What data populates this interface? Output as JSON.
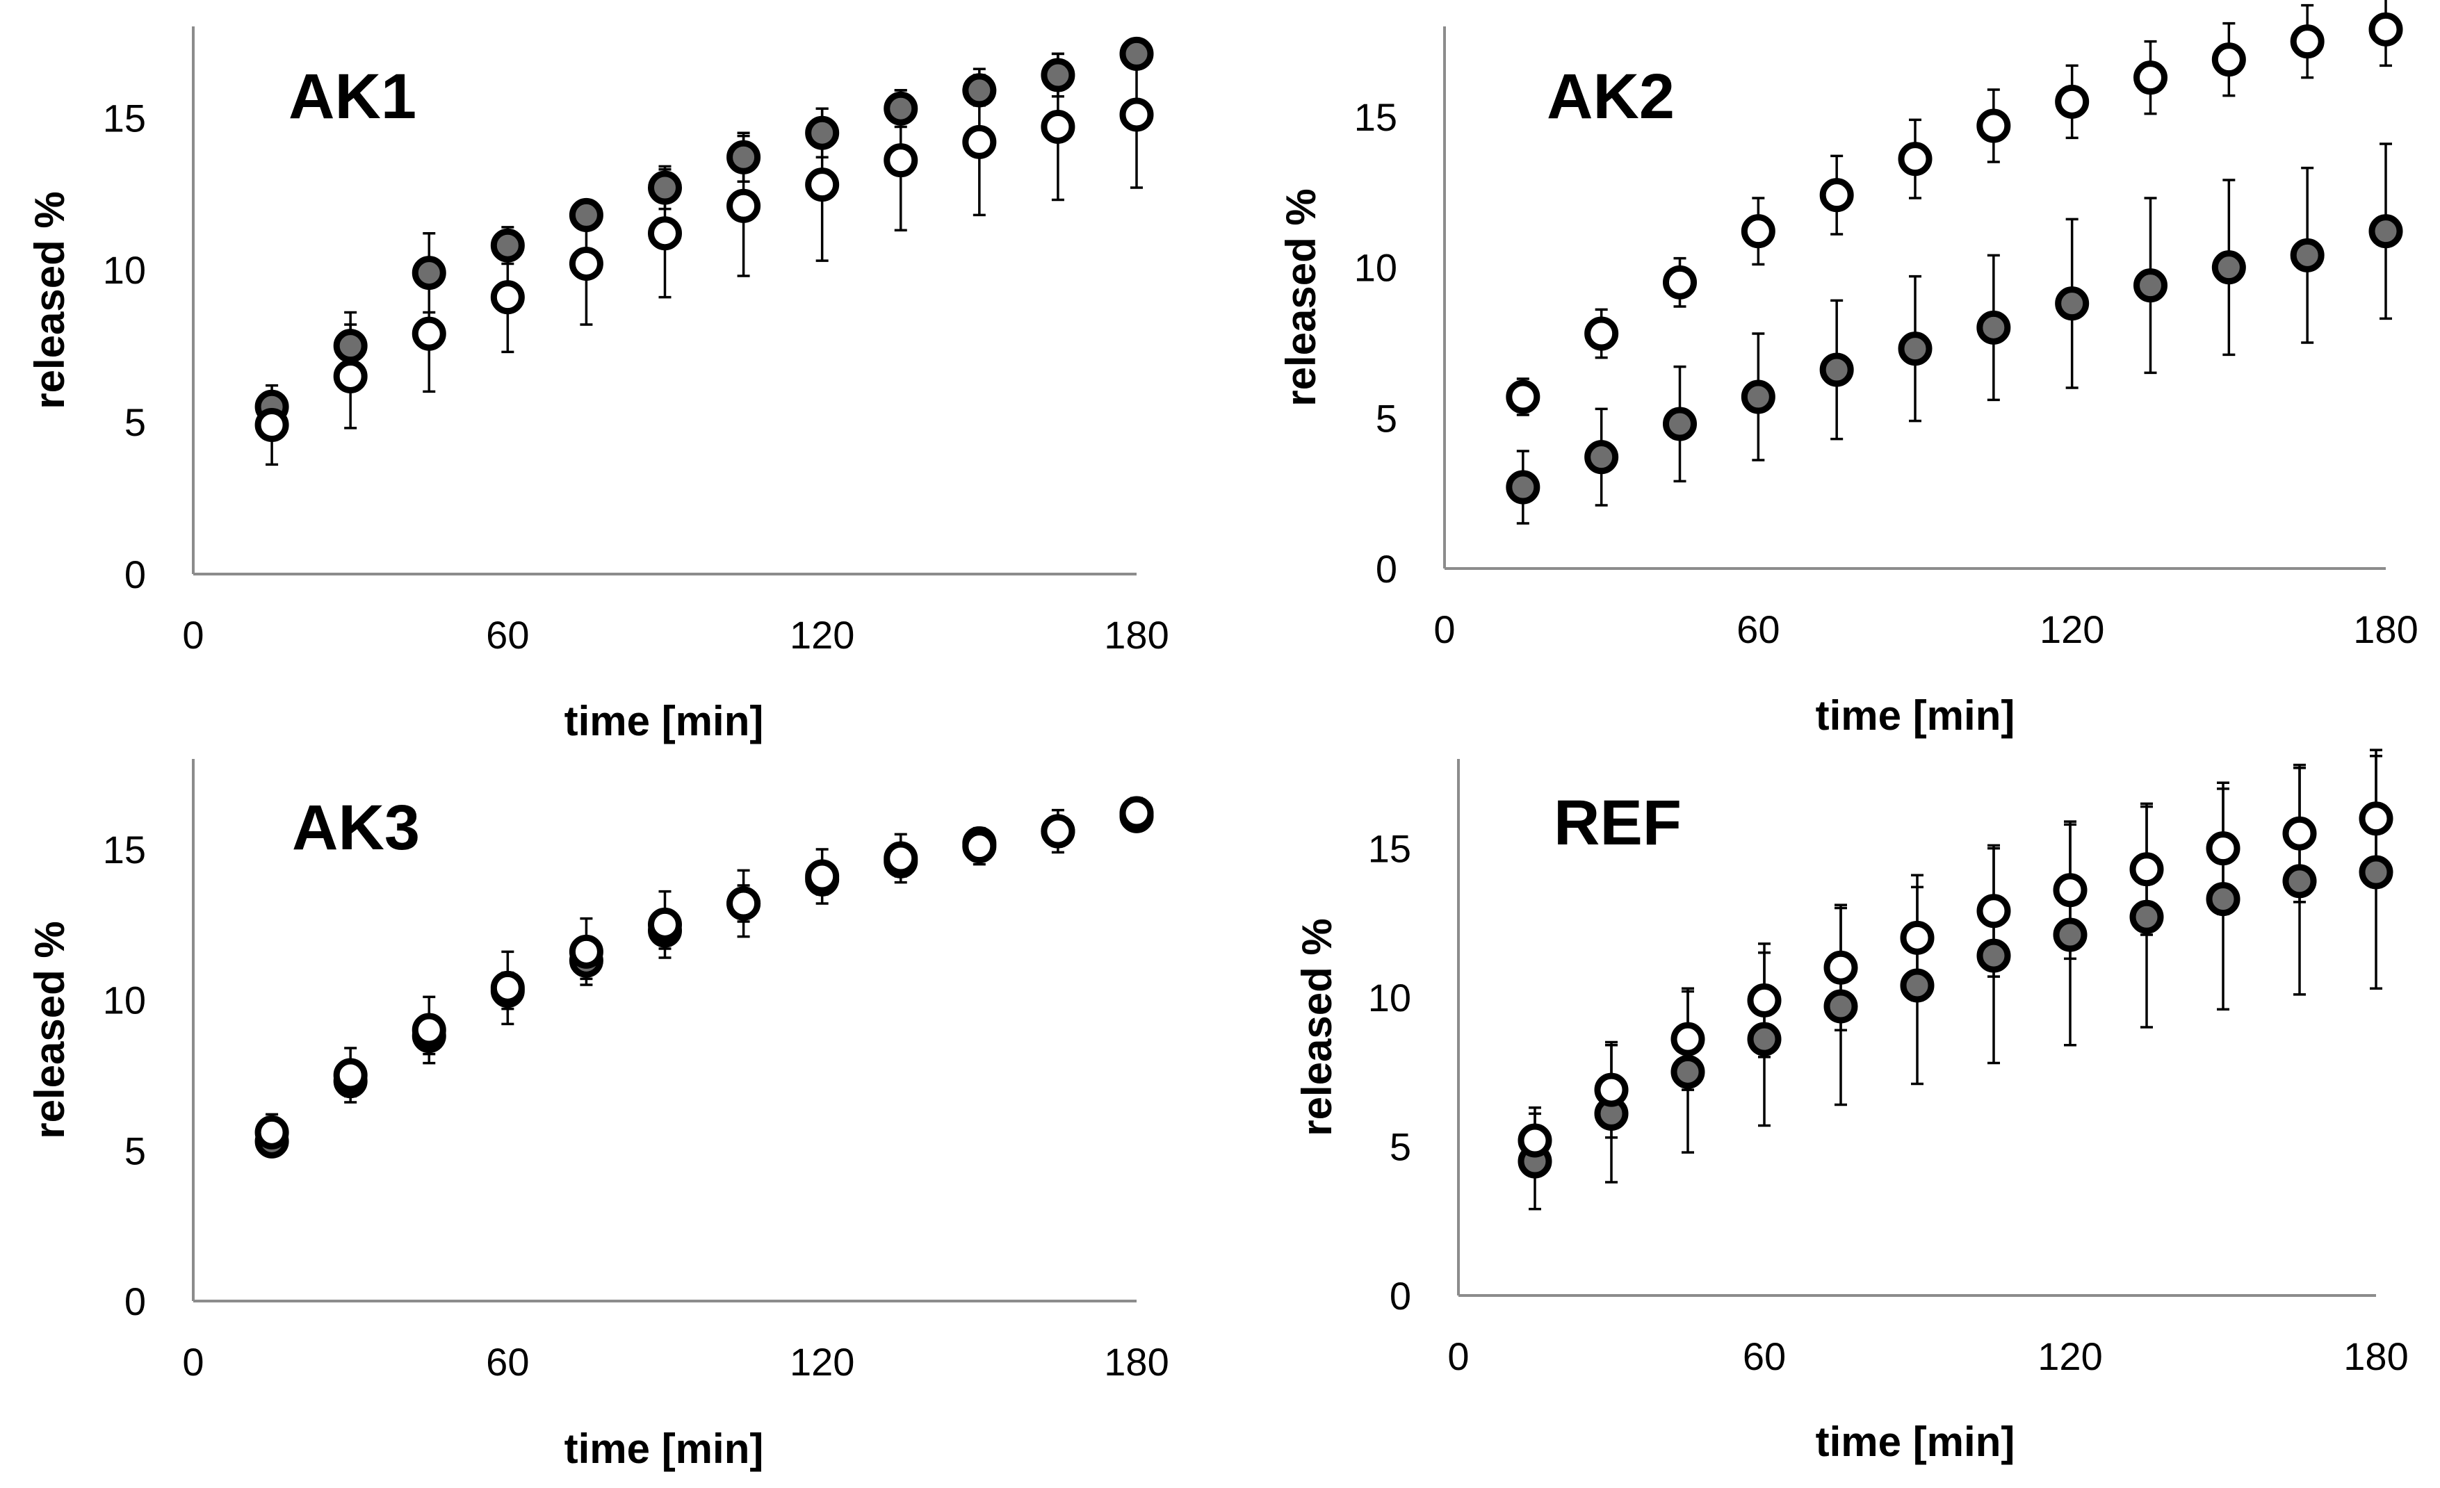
{
  "colors": {
    "filled_marker": "#6e6e6e",
    "open_marker": "#ffffff",
    "axis": "#8c8c8c",
    "text": "#000000"
  },
  "chart_data": [
    {
      "type": "scatter",
      "title": "AK1",
      "xlabel": "time [min]",
      "ylabel": "released %",
      "xlim": [
        0,
        180
      ],
      "ylim": [
        0,
        18
      ],
      "xticks": [
        0,
        60,
        120,
        180
      ],
      "yticks": [
        0,
        5,
        10,
        15
      ],
      "x": [
        15,
        30,
        45,
        60,
        75,
        90,
        105,
        120,
        135,
        150,
        165,
        180
      ],
      "series": [
        {
          "name": "filled",
          "style": "filled",
          "values": [
            5.5,
            7.5,
            9.9,
            10.8,
            11.8,
            12.7,
            13.7,
            14.5,
            15.3,
            15.9,
            16.4,
            17.1
          ],
          "errors": [
            0.3,
            1.1,
            1.3,
            0.6,
            0.4,
            0.7,
            0.8,
            0.8,
            0.6,
            0.5,
            0.7,
            0.3
          ]
        },
        {
          "name": "open",
          "style": "open",
          "values": [
            4.9,
            6.5,
            7.9,
            9.1,
            10.2,
            11.2,
            12.1,
            12.8,
            13.6,
            14.2,
            14.7,
            15.1
          ],
          "errors": [
            1.3,
            1.7,
            1.9,
            1.8,
            2.0,
            2.1,
            2.3,
            2.5,
            2.3,
            2.4,
            2.4,
            2.4
          ]
        }
      ]
    },
    {
      "type": "scatter",
      "title": "AK2",
      "xlabel": "time [min]",
      "ylabel": "released %",
      "xlim": [
        0,
        180
      ],
      "ylim": [
        0,
        18
      ],
      "xticks": [
        0,
        60,
        120,
        180
      ],
      "yticks": [
        0,
        5,
        10,
        15
      ],
      "x": [
        15,
        30,
        45,
        60,
        75,
        90,
        105,
        120,
        135,
        150,
        165,
        180
      ],
      "series": [
        {
          "name": "filled",
          "style": "filled",
          "values": [
            2.7,
            3.7,
            4.8,
            5.7,
            6.6,
            7.3,
            8.0,
            8.8,
            9.4,
            10.0,
            10.4,
            11.2
          ],
          "errors": [
            1.2,
            1.6,
            1.9,
            2.1,
            2.3,
            2.4,
            2.4,
            2.8,
            2.9,
            2.9,
            2.9,
            2.9
          ]
        },
        {
          "name": "open",
          "style": "open",
          "values": [
            5.7,
            7.8,
            9.5,
            11.2,
            12.4,
            13.6,
            14.7,
            15.5,
            16.3,
            16.9,
            17.5,
            17.9
          ],
          "errors": [
            0.6,
            0.8,
            0.8,
            1.1,
            1.3,
            1.3,
            1.2,
            1.2,
            1.2,
            1.2,
            1.2,
            1.2
          ]
        }
      ]
    },
    {
      "type": "scatter",
      "title": "AK3",
      "xlabel": "time [min]",
      "ylabel": "released %",
      "xlim": [
        0,
        180
      ],
      "ylim": [
        0,
        18
      ],
      "xticks": [
        0,
        60,
        120,
        180
      ],
      "yticks": [
        0,
        5,
        10,
        15
      ],
      "x": [
        15,
        30,
        45,
        60,
        75,
        90,
        105,
        120,
        135,
        150,
        165,
        180
      ],
      "series": [
        {
          "name": "filled",
          "style": "filled",
          "values": [
            5.3,
            7.3,
            8.8,
            10.3,
            11.3,
            12.3,
            13.2,
            14.0,
            14.6,
            15.2,
            15.6,
            16.1
          ],
          "errors": [
            0.4,
            0.5,
            0.6,
            0.6,
            0.6,
            0.6,
            0.6,
            0.5,
            0.5,
            0.4,
            0.4,
            0.3
          ]
        },
        {
          "name": "open",
          "style": "open",
          "values": [
            5.6,
            7.5,
            9.0,
            10.4,
            11.6,
            12.5,
            13.2,
            14.1,
            14.7,
            15.1,
            15.6,
            16.2
          ],
          "errors": [
            0.6,
            0.9,
            1.1,
            1.2,
            1.1,
            1.1,
            1.1,
            0.9,
            0.8,
            0.6,
            0.7,
            0.5
          ]
        }
      ]
    },
    {
      "type": "scatter",
      "title": "REF",
      "xlabel": "time [min]",
      "ylabel": "released %",
      "xlim": [
        0,
        180
      ],
      "ylim": [
        0,
        18
      ],
      "xticks": [
        0,
        60,
        120,
        180
      ],
      "yticks": [
        0,
        5,
        10,
        15
      ],
      "x": [
        15,
        30,
        45,
        60,
        75,
        90,
        105,
        120,
        135,
        150,
        165,
        180
      ],
      "series": [
        {
          "name": "filled",
          "style": "filled",
          "values": [
            4.5,
            6.1,
            7.5,
            8.6,
            9.7,
            10.4,
            11.4,
            12.1,
            12.7,
            13.3,
            13.9,
            14.2
          ],
          "errors": [
            1.6,
            2.3,
            2.7,
            2.9,
            3.3,
            3.3,
            3.6,
            3.7,
            3.7,
            3.7,
            3.8,
            3.9
          ]
        },
        {
          "name": "open",
          "style": "open",
          "values": [
            5.2,
            6.9,
            8.6,
            9.9,
            11.0,
            12.0,
            12.9,
            13.6,
            14.3,
            15.0,
            15.5,
            16.0
          ],
          "errors": [
            1.1,
            1.6,
            1.7,
            1.9,
            2.1,
            2.1,
            2.2,
            2.3,
            2.2,
            2.2,
            2.3,
            2.3
          ]
        }
      ]
    }
  ]
}
